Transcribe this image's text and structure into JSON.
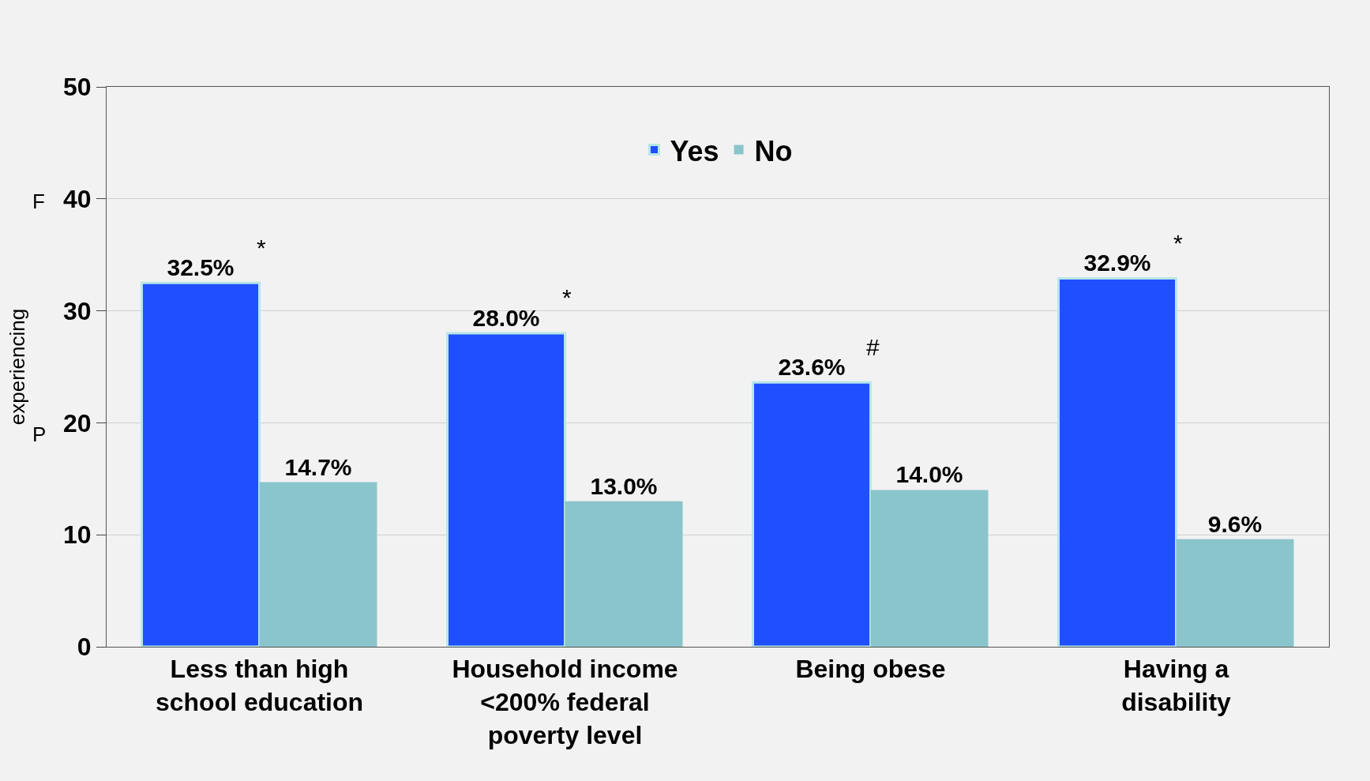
{
  "chart_data": {
    "type": "bar",
    "categories": [
      "Less than high school education",
      "Household income <200% federal poverty level",
      "Being obese",
      "Having a disability"
    ],
    "series": [
      {
        "name": "Yes",
        "color": "#1f4fff",
        "values": [
          32.5,
          28.0,
          23.6,
          32.9
        ],
        "value_labels": [
          "32.5%",
          "28.0%",
          "23.6%",
          "32.9%"
        ]
      },
      {
        "name": "No",
        "color": "#8bc5cc",
        "values": [
          14.7,
          13.0,
          14.0,
          9.6
        ],
        "value_labels": [
          "14.7%",
          "13.0%",
          "14.0%",
          "9.6%"
        ]
      }
    ],
    "ylabel": "experiencing",
    "annotations": [
      "F",
      "P",
      {
        "text": "*",
        "x": "Less than high school education",
        "y": 32.5
      },
      {
        "text": "*",
        "x": "Household income <200% federal poverty level",
        "y": 28.0
      },
      {
        "text": "#",
        "x": "Being obese",
        "y": 23.6
      },
      {
        "text": "*",
        "x": "Having a disability",
        "y": 32.9
      }
    ],
    "ylim": [
      0,
      50
    ],
    "yticks": [
      0,
      10,
      20,
      30,
      40,
      50
    ],
    "grid": "y",
    "legend": "top"
  }
}
